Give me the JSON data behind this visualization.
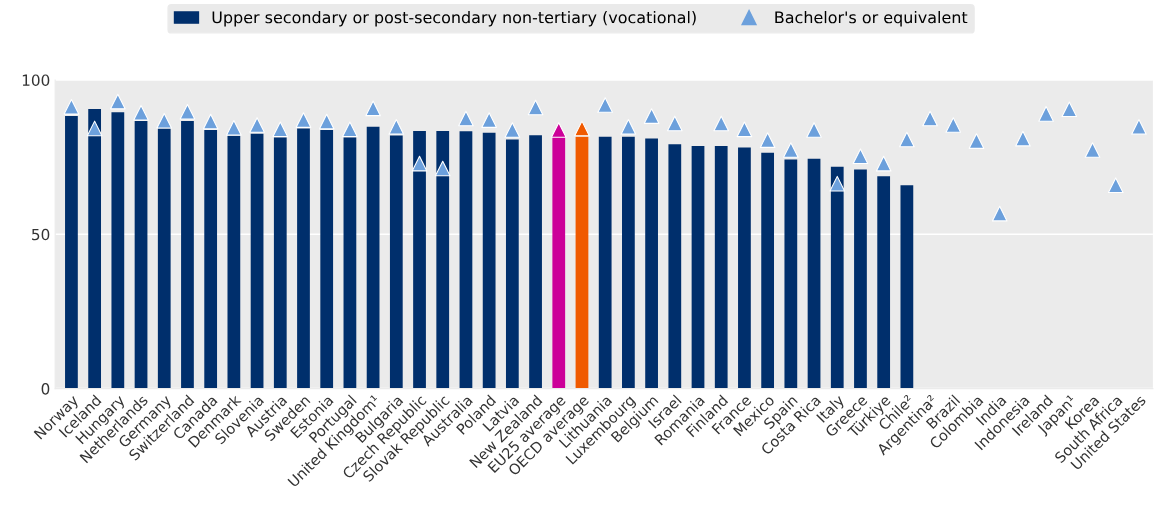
{
  "chart_data": {
    "type": "bar",
    "categories": [
      "Norway",
      "Iceland",
      "Hungary",
      "Netherlands",
      "Germany",
      "Switzerland",
      "Canada",
      "Denmark",
      "Slovenia",
      "Austria",
      "Sweden",
      "Estonia",
      "Portugal",
      "United Kingdom¹",
      "Bulgaria",
      "Czech Republic",
      "Slovak Republic",
      "Australia",
      "Poland",
      "Latvia",
      "New Zealand",
      "EU25 average",
      "OECD average",
      "Lithuania",
      "Luxembourg",
      "Belgium",
      "Israel",
      "Romania",
      "Finland",
      "France",
      "Mexico",
      "Spain",
      "Costa Rica",
      "Italy",
      "Greece",
      "Türkiye",
      "Chile²",
      "Argentina²",
      "Brazil",
      "Colombia",
      "India",
      "Indonesia",
      "Ireland",
      "Japan¹",
      "Korea",
      "South Africa",
      "United States"
    ],
    "series": [
      {
        "name": "Upper secondary or post-secondary non-tertiary (vocational)",
        "color": "#002f6c",
        "colors": [
          "#002f6c",
          "#002f6c",
          "#002f6c",
          "#002f6c",
          "#002f6c",
          "#002f6c",
          "#002f6c",
          "#002f6c",
          "#002f6c",
          "#002f6c",
          "#002f6c",
          "#002f6c",
          "#002f6c",
          "#002f6c",
          "#002f6c",
          "#002f6c",
          "#002f6c",
          "#002f6c",
          "#002f6c",
          "#002f6c",
          "#002f6c",
          "#cc0099",
          "#f05a00",
          "#002f6c",
          "#002f6c",
          "#002f6c",
          "#002f6c",
          "#002f6c",
          "#002f6c",
          "#002f6c",
          "#002f6c",
          "#002f6c",
          "#002f6c",
          "#002f6c",
          "#002f6c",
          "#002f6c",
          "#002f6c",
          "#002f6c",
          "#002f6c",
          "#002f6c",
          "#002f6c",
          "#002f6c",
          "#002f6c",
          "#002f6c",
          "#002f6c",
          "#002f6c",
          "#002f6c"
        ],
        "values": [
          88.3,
          90.6,
          89.5,
          86.7,
          84.3,
          86.7,
          83.8,
          82,
          82.6,
          81.4,
          84.3,
          83.8,
          81.4,
          84.8,
          82,
          83.5,
          83.5,
          83.4,
          82.9,
          80.7,
          82.1,
          81.6,
          81.6,
          81.6,
          81.6,
          81,
          79.2,
          78.6,
          78.6,
          78.1,
          76.4,
          74.2,
          74.5,
          71.9,
          71,
          68.8,
          65.9,
          null,
          null,
          null,
          null,
          null,
          null,
          null,
          null,
          null,
          null
        ]
      },
      {
        "name": "Bachelor's or equivalent",
        "type": "scatter",
        "marker": "triangle",
        "color": "#6ca0dc",
        "colors": [
          "#6ca0dc",
          "#6ca0dc",
          "#6ca0dc",
          "#6ca0dc",
          "#6ca0dc",
          "#6ca0dc",
          "#6ca0dc",
          "#6ca0dc",
          "#6ca0dc",
          "#6ca0dc",
          "#6ca0dc",
          "#6ca0dc",
          "#6ca0dc",
          "#6ca0dc",
          "#6ca0dc",
          "#6ca0dc",
          "#6ca0dc",
          "#6ca0dc",
          "#6ca0dc",
          "#6ca0dc",
          "#6ca0dc",
          "#cc0099",
          "#f05a00",
          "#6ca0dc",
          "#6ca0dc",
          "#6ca0dc",
          "#6ca0dc",
          "#6ca0dc",
          "#6ca0dc",
          "#6ca0dc",
          "#6ca0dc",
          "#6ca0dc",
          "#6ca0dc",
          "#6ca0dc",
          "#6ca0dc",
          "#6ca0dc",
          "#6ca0dc",
          "#6ca0dc",
          "#6ca0dc",
          "#6ca0dc",
          "#6ca0dc",
          "#6ca0dc",
          "#6ca0dc",
          "#6ca0dc",
          "#6ca0dc",
          "#6ca0dc",
          "#6ca0dc"
        ],
        "values": [
          91.3,
          84.3,
          93,
          89.4,
          86.8,
          89.7,
          86.5,
          84.5,
          85.4,
          84,
          87,
          86.5,
          84,
          90.8,
          84.8,
          72.9,
          71.3,
          87.5,
          87,
          83.8,
          91.1,
          83.8,
          84.3,
          91.9,
          84.8,
          88.3,
          85.9,
          null,
          85.9,
          84,
          80.5,
          77.3,
          83.8,
          66.4,
          75.3,
          72.9,
          80.7,
          87.5,
          85.4,
          80.2,
          56.7,
          81,
          89,
          90.5,
          77.3,
          65.9,
          84.8
        ]
      }
    ],
    "ylim": [
      0,
      100
    ],
    "yticks": [
      0,
      50,
      100
    ],
    "grid": "y",
    "legend": "top"
  }
}
